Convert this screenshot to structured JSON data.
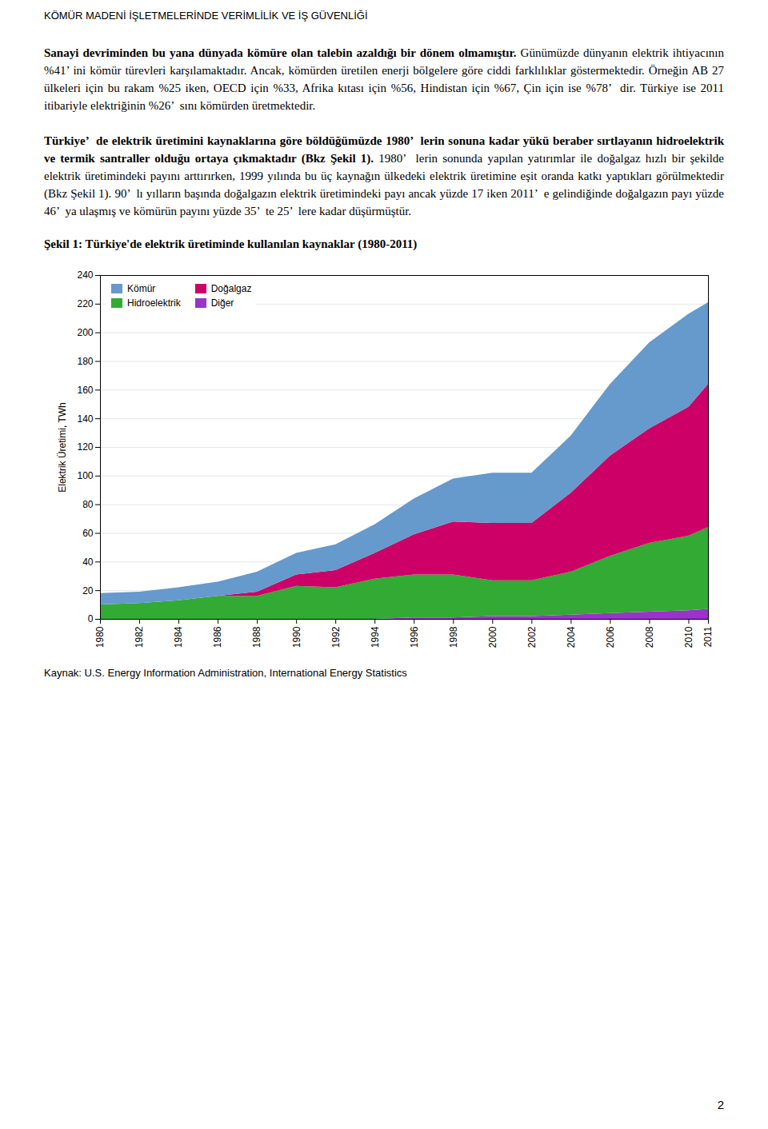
{
  "page_title": "KÖMÜR MADENİ İŞLETMELERİNDE VERİMLİLİK VE İŞ GÜVENLİĞİ",
  "paragraphs": [
    {
      "bold": "Sanayi devriminden bu yana dünyada kömüre olan talebin azaldığı bir dönem olmamıştır.",
      "normal": "Günümüzde dünyanın elektrik ihtiyacının %41’ ini kömür türevleri karşılamaktadır. Ancak, kömürden üretilen enerji bölgelere göre ciddi farklılıklar göstermektedir. Örneğin AB 27 ülkeleri için bu rakam %25 iken, OECD için %33, Afrika kıtası için %56, Hindistan için %67, Çin için ise %78’  dir. Türkiye ise 2011 itibariyle elektriğinin %26’  sını kömürden üretmektedir."
    },
    {
      "bold": "Türkiye’  de elektrik üretimini kaynaklarına göre böldüğümüzde 1980’  lerin sonuna kadar yükü beraber sırtlayanın hidroelektrik ve termik santraller olduğu ortaya çıkmaktadır (Bkz Şekil 1).",
      "normal": "1980’  lerin sonunda yapılan yatırımlar ile doğalgaz hızlı bir şekilde elektrik üretimindeki payını arttırırken, 1999 yılında bu üç kaynağın ülkedeki elektrik üretimine eşit oranda katkı yaptıkları görülmektedir (Bkz Şekil 1). 90’  lı yılların başında doğalgazın elektrik üretimindeki payı ancak yüzde 17 iken 2011’  e gelindiğinde doğalgazın payı yüzde 46’  ya ulaşmış ve kömürün payını yüzde 35’  te 25’  lere kadar düşürmüştür."
    }
  ],
  "source": "Kaynak: U.S. Energy Information Administration, International Energy Statistics",
  "page_number": "2",
  "chart_data": {
    "type": "area",
    "stacked": true,
    "title": "Şekil 1: Türkiye'de elektrik üretiminde kullanılan kaynaklar (1980-2011)",
    "ylabel": "Elektrik Üretimi, TWh",
    "x": [
      1980,
      1982,
      1984,
      1986,
      1988,
      1990,
      1992,
      1994,
      1996,
      1998,
      2000,
      2002,
      2004,
      2006,
      2008,
      2010,
      2011
    ],
    "xlim": [
      1980,
      2011
    ],
    "xticks": [
      1980,
      1982,
      1984,
      1986,
      1988,
      1990,
      1992,
      1994,
      1996,
      1998,
      2000,
      2002,
      2004,
      2006,
      2008,
      2010,
      2011
    ],
    "ylim": [
      0,
      240
    ],
    "yticks": [
      0,
      20,
      40,
      60,
      80,
      100,
      120,
      140,
      160,
      180,
      200,
      220,
      240
    ],
    "grid": true,
    "legend": "upper left",
    "series": [
      {
        "name": "Diğer",
        "color": "#9933CC",
        "values": [
          0,
          0,
          0,
          0,
          0,
          0,
          0,
          0,
          1,
          1,
          2,
          2,
          3,
          4,
          5,
          6,
          7
        ]
      },
      {
        "name": "Hidroelektrik",
        "color": "#33AA33",
        "values": [
          10,
          11,
          13,
          16,
          16,
          23,
          22,
          28,
          30,
          30,
          25,
          25,
          30,
          40,
          48,
          52,
          57
        ]
      },
      {
        "name": "Doğalgaz",
        "color": "#CC0066",
        "values": [
          0,
          0,
          0,
          0,
          3,
          8,
          12,
          18,
          28,
          37,
          40,
          40,
          55,
          70,
          80,
          90,
          100
        ]
      },
      {
        "name": "Kömür",
        "color": "#6699CC",
        "values": [
          8,
          8,
          9,
          10,
          14,
          15,
          18,
          20,
          25,
          30,
          35,
          35,
          40,
          50,
          60,
          65,
          57
        ]
      }
    ]
  }
}
